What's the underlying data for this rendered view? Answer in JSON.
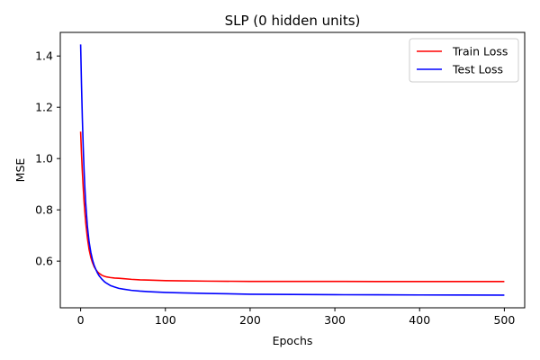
{
  "chart_data": {
    "type": "line",
    "title": "SLP (0 hidden units)",
    "xlabel": "Epochs",
    "ylabel": "MSE",
    "xlim": [
      -24,
      524
    ],
    "ylim": [
      0.418,
      1.492
    ],
    "xticks": [
      0,
      100,
      200,
      300,
      400,
      500
    ],
    "yticks": [
      0.6,
      0.8,
      1.0,
      1.2,
      1.4
    ],
    "ytick_labels": [
      "0.6",
      "0.8",
      "1.0",
      "1.2",
      "1.4"
    ],
    "grid": false,
    "legend_position": "top-right",
    "series": [
      {
        "name": "Train Loss",
        "color": "#ff0000",
        "x": [
          0,
          1,
          2,
          3,
          4,
          5,
          6,
          8,
          10,
          12,
          14,
          16,
          18,
          20,
          22,
          25,
          28,
          30,
          35,
          40,
          45,
          50,
          60,
          70,
          80,
          100,
          120,
          150,
          200,
          250,
          300,
          350,
          400,
          450,
          500
        ],
        "values": [
          1.105,
          1.02,
          0.95,
          0.89,
          0.835,
          0.79,
          0.75,
          0.69,
          0.645,
          0.615,
          0.594,
          0.578,
          0.567,
          0.558,
          0.552,
          0.545,
          0.541,
          0.539,
          0.536,
          0.534,
          0.533,
          0.532,
          0.529,
          0.527,
          0.526,
          0.524,
          0.523,
          0.522,
          0.521,
          0.521,
          0.521,
          0.5205,
          0.5205,
          0.5205,
          0.5205
        ]
      },
      {
        "name": "Test Loss",
        "color": "#0000ff",
        "x": [
          0,
          1,
          2,
          3,
          4,
          5,
          6,
          8,
          10,
          12,
          14,
          16,
          18,
          20,
          22,
          25,
          28,
          30,
          35,
          40,
          45,
          50,
          60,
          70,
          80,
          100,
          120,
          150,
          200,
          250,
          300,
          350,
          400,
          450,
          500
        ],
        "values": [
          1.445,
          1.29,
          1.16,
          1.05,
          0.96,
          0.885,
          0.825,
          0.735,
          0.675,
          0.635,
          0.605,
          0.583,
          0.567,
          0.553,
          0.542,
          0.53,
          0.52,
          0.515,
          0.505,
          0.499,
          0.494,
          0.491,
          0.486,
          0.483,
          0.481,
          0.478,
          0.476,
          0.474,
          0.471,
          0.47,
          0.469,
          0.4685,
          0.468,
          0.4678,
          0.4675
        ]
      }
    ]
  }
}
